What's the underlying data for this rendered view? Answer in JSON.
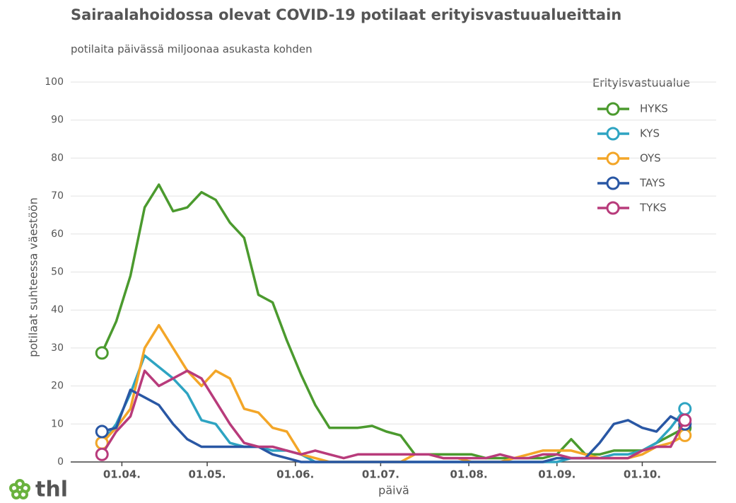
{
  "chart_data": {
    "type": "line",
    "title": "Sairaalahoidossa olevat COVID-19 potilaat erityisvastuualueittain",
    "subtitle": "potilaita päivässä miljoonaa asukasta kohden",
    "ylabel": "potilaat suhteessa väestöön",
    "xlabel": "päivä",
    "legend_title": "Erityisvastuualue",
    "legend": "top-right",
    "grid": true,
    "logo": "thl",
    "x": [
      "25.03.",
      "30.03.",
      "04.04.",
      "09.04.",
      "14.04.",
      "19.04.",
      "24.04.",
      "29.04.",
      "04.05.",
      "09.05.",
      "14.05.",
      "19.05.",
      "24.05.",
      "29.05.",
      "03.06.",
      "08.06.",
      "13.06.",
      "18.06.",
      "23.06.",
      "28.06.",
      "03.07.",
      "08.07.",
      "13.07.",
      "18.07.",
      "23.07.",
      "28.07.",
      "02.08.",
      "07.08.",
      "12.08.",
      "17.08.",
      "22.08.",
      "27.08.",
      "01.09.",
      "06.09.",
      "11.09.",
      "16.09.",
      "21.09.",
      "26.09.",
      "01.10.",
      "06.10.",
      "11.10.",
      "16.10."
    ],
    "xlim": [
      "14.03.",
      "27.10."
    ],
    "xticks": [
      "01.04.",
      "01.05.",
      "01.06.",
      "01.07.",
      "01.08.",
      "01.09.",
      "01.10."
    ],
    "ylim": [
      0,
      100
    ],
    "yticks": [
      0,
      10,
      20,
      30,
      40,
      50,
      60,
      70,
      80,
      90,
      100
    ],
    "series": [
      {
        "name": "HYKS",
        "color": "#4b9a2e",
        "values": [
          28.7,
          37,
          49,
          67,
          73,
          66,
          67,
          71,
          69,
          63,
          59,
          44,
          42,
          32,
          23,
          15,
          9,
          9,
          9,
          9.5,
          8,
          7,
          2,
          2,
          2,
          2,
          2,
          1,
          1,
          1,
          1,
          1,
          2,
          6,
          2,
          2,
          3,
          3,
          3,
          5,
          7,
          9
        ]
      },
      {
        "name": "KYS",
        "color": "#2ea4c2",
        "values": [
          5,
          10,
          18,
          28,
          25,
          22,
          18,
          11,
          10,
          5,
          4,
          4,
          3,
          3,
          2,
          0,
          0,
          0,
          0,
          0,
          0,
          0,
          0,
          0,
          0,
          0,
          0,
          0,
          0,
          0,
          0,
          0,
          0,
          1,
          1,
          1,
          2,
          2,
          3,
          5,
          9,
          14
        ]
      },
      {
        "name": "OYS",
        "color": "#f3a628",
        "values": [
          5,
          9,
          14,
          30,
          36,
          30,
          24,
          20,
          24,
          22,
          14,
          13,
          9,
          8,
          2,
          1,
          0,
          0,
          0,
          0,
          0,
          0,
          2,
          2,
          1,
          1,
          0,
          0,
          0,
          1,
          2,
          3,
          3,
          3,
          2,
          1,
          1,
          1,
          2,
          4,
          5,
          7
        ]
      },
      {
        "name": "TAYS",
        "color": "#2957a4",
        "values": [
          8,
          9,
          19,
          17,
          15,
          10,
          6,
          4,
          4,
          4,
          4,
          4,
          2,
          1,
          0,
          0,
          0,
          0,
          0,
          0,
          0,
          0,
          0,
          0,
          0,
          0,
          0,
          0,
          0,
          0,
          0,
          0,
          1,
          1,
          1,
          5,
          10,
          11,
          9,
          8,
          12,
          10
        ]
      },
      {
        "name": "TYKS",
        "color": "#b83b7b",
        "values": [
          2,
          8,
          12,
          24,
          20,
          22,
          24,
          22,
          16,
          10,
          5,
          4,
          4,
          3,
          2,
          3,
          2,
          1,
          2,
          2,
          2,
          2,
          2,
          2,
          1,
          1,
          1,
          1,
          2,
          1,
          1,
          2,
          2,
          1,
          1,
          1,
          1,
          1,
          3,
          4,
          4,
          11
        ]
      }
    ]
  }
}
